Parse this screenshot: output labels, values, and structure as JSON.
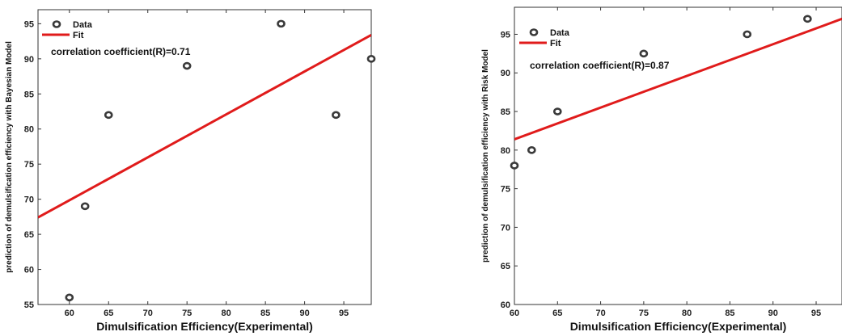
{
  "chart_data": [
    {
      "type": "scatter",
      "xlabel": "Dimulsification Efficiency(Experimental)",
      "ylabel": "prediction of demulsification efficiency with Bayesian Model",
      "xlim": [
        56,
        98.5
      ],
      "ylim": [
        55,
        97
      ],
      "xticks": [
        60,
        65,
        70,
        75,
        80,
        85,
        90,
        95
      ],
      "yticks": [
        55,
        60,
        65,
        70,
        75,
        80,
        85,
        90,
        95
      ],
      "series": [
        {
          "name": "Data",
          "x": [
            60,
            62,
            65,
            75,
            87,
            94,
            98.5
          ],
          "y": [
            56,
            69,
            82,
            89,
            95,
            82,
            90
          ]
        },
        {
          "name": "Fit",
          "x": [
            56,
            98.5
          ],
          "y": [
            67.4,
            93.4
          ]
        }
      ],
      "annotation": "correlation coefficient(R)=0.71",
      "legend": "top-left",
      "colors": {
        "data": "#3a3a3a",
        "fit": "#e01b1b"
      }
    },
    {
      "type": "scatter",
      "xlabel": "Dimulsification Efficiency(Experimental)",
      "ylabel": "prediction of demulsification efficiency with Risk Model",
      "xlim": [
        60,
        98
      ],
      "ylim": [
        60,
        98.5
      ],
      "xticks": [
        60,
        65,
        70,
        75,
        80,
        85,
        90,
        95
      ],
      "yticks": [
        60,
        65,
        70,
        75,
        80,
        85,
        90,
        95
      ],
      "series": [
        {
          "name": "Data",
          "x": [
            60,
            62,
            65,
            75,
            87,
            94
          ],
          "y": [
            78,
            80,
            85,
            92.5,
            95,
            97
          ]
        },
        {
          "name": "Fit",
          "x": [
            60,
            98
          ],
          "y": [
            81.4,
            97
          ]
        }
      ],
      "annotation": "correlation coefficient(R)=0.87",
      "legend": "top-left",
      "colors": {
        "data": "#3a3a3a",
        "fit": "#e01b1b"
      }
    }
  ]
}
